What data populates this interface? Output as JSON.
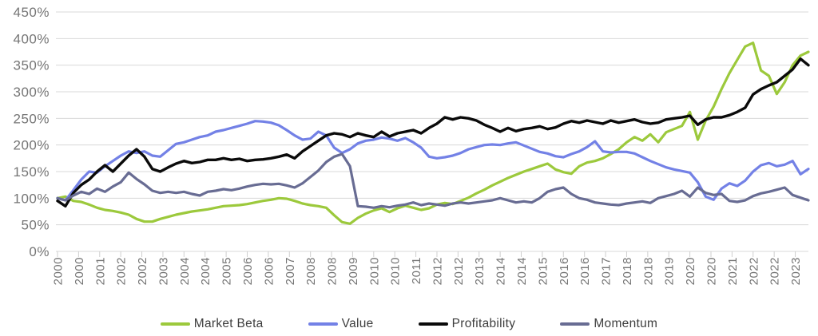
{
  "chart_data": {
    "type": "line",
    "title": "",
    "xlabel": "",
    "ylabel": "",
    "ylim": [
      0,
      450
    ],
    "y_tick_labels": [
      "0%",
      "50%",
      "100%",
      "150%",
      "200%",
      "250%",
      "300%",
      "350%",
      "400%",
      "450%"
    ],
    "grid": "horizontal",
    "legend_position": "bottom",
    "x_start_year": 2000,
    "x_step_years": 0.25,
    "x_tick_interval_years": 0.6667,
    "x_tick_labels": [
      "2000",
      "2000",
      "2001",
      "2002",
      "2002",
      "2003",
      "2004",
      "2004",
      "2005",
      "2006",
      "2006",
      "2007",
      "2008",
      "2008",
      "2009",
      "2010",
      "2010",
      "2011",
      "2012",
      "2012",
      "2013",
      "2014",
      "2014",
      "2015",
      "2016",
      "2016",
      "2017",
      "2018",
      "2018",
      "2019",
      "2020",
      "2020",
      "2021",
      "2022",
      "2022",
      "2023"
    ],
    "unit": "percent",
    "series": [
      {
        "name": "Market Beta",
        "color": "#9cc93c",
        "values": [
          100,
          103,
          95,
          93,
          88,
          82,
          78,
          76,
          73,
          69,
          61,
          56,
          56,
          61,
          65,
          69,
          72,
          75,
          77,
          79,
          82,
          85,
          86,
          87,
          89,
          92,
          95,
          97,
          100,
          99,
          95,
          90,
          87,
          85,
          82,
          68,
          55,
          52,
          63,
          71,
          77,
          81,
          74,
          81,
          86,
          82,
          78,
          81,
          88,
          91,
          89,
          95,
          101,
          109,
          116,
          124,
          131,
          138,
          144,
          150,
          155,
          160,
          165,
          154,
          149,
          146,
          160,
          167,
          170,
          175,
          183,
          192,
          205,
          215,
          208,
          220,
          205,
          224,
          230,
          236,
          262,
          210,
          246,
          272,
          305,
          335,
          360,
          385,
          392,
          340,
          330,
          296,
          318,
          350,
          368,
          375
        ]
      },
      {
        "name": "Value",
        "color": "#7381e6",
        "values": [
          100,
          96,
          115,
          135,
          150,
          148,
          160,
          170,
          180,
          188,
          185,
          188,
          180,
          178,
          190,
          202,
          205,
          210,
          215,
          218,
          225,
          228,
          232,
          236,
          240,
          245,
          244,
          242,
          237,
          228,
          218,
          210,
          212,
          225,
          218,
          195,
          185,
          192,
          203,
          208,
          210,
          214,
          212,
          208,
          213,
          205,
          195,
          178,
          175,
          177,
          180,
          185,
          192,
          196,
          200,
          201,
          200,
          203,
          205,
          199,
          193,
          187,
          184,
          179,
          177,
          183,
          188,
          196,
          207,
          188,
          186,
          187,
          187,
          184,
          177,
          170,
          164,
          158,
          154,
          151,
          148,
          130,
          103,
          97,
          118,
          128,
          123,
          133,
          150,
          162,
          166,
          160,
          163,
          170,
          145,
          155
        ]
      },
      {
        "name": "Profitability",
        "color": "#0a0a0a",
        "values": [
          95,
          85,
          110,
          125,
          135,
          150,
          162,
          150,
          165,
          180,
          192,
          178,
          155,
          150,
          158,
          165,
          170,
          166,
          168,
          172,
          172,
          175,
          172,
          174,
          170,
          172,
          173,
          175,
          178,
          182,
          175,
          188,
          198,
          208,
          218,
          222,
          220,
          215,
          222,
          218,
          215,
          225,
          216,
          222,
          225,
          228,
          222,
          232,
          240,
          252,
          248,
          252,
          250,
          246,
          238,
          232,
          225,
          232,
          226,
          230,
          232,
          235,
          230,
          233,
          240,
          245,
          242,
          246,
          243,
          240,
          246,
          242,
          245,
          248,
          243,
          240,
          242,
          248,
          250,
          252,
          255,
          238,
          248,
          252,
          252,
          256,
          262,
          270,
          295,
          305,
          312,
          318,
          330,
          342,
          362,
          350
        ]
      },
      {
        "name": "Momentum",
        "color": "#686c93",
        "values": [
          100,
          96,
          105,
          112,
          108,
          118,
          112,
          122,
          130,
          148,
          136,
          126,
          114,
          110,
          112,
          110,
          112,
          108,
          105,
          112,
          114,
          117,
          115,
          118,
          122,
          125,
          127,
          126,
          127,
          124,
          120,
          128,
          140,
          152,
          168,
          178,
          183,
          160,
          85,
          84,
          82,
          85,
          83,
          86,
          88,
          92,
          87,
          90,
          88,
          86,
          90,
          92,
          90,
          92,
          94,
          96,
          100,
          96,
          92,
          94,
          92,
          100,
          112,
          117,
          120,
          108,
          100,
          97,
          92,
          90,
          88,
          87,
          90,
          92,
          94,
          91,
          100,
          104,
          108,
          114,
          103,
          120,
          110,
          106,
          108,
          95,
          93,
          96,
          104,
          109,
          112,
          116,
          120,
          106,
          101,
          96
        ]
      }
    ],
    "colors": {
      "gridline": "#d8d8d8",
      "tick": "#cfcfcf",
      "axis_label": "#757575",
      "legend_text": "#3d3d3d"
    }
  },
  "legend": {
    "items": [
      "Market Beta",
      "Value",
      "Profitability",
      "Momentum"
    ]
  }
}
